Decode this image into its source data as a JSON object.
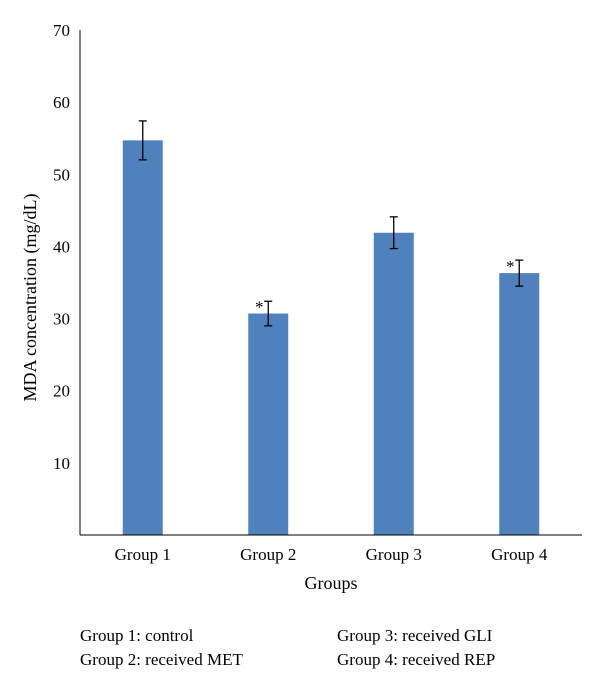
{
  "chart_data": {
    "type": "bar",
    "xlabel": "Groups",
    "ylabel": "MDA concentration (mg/dL)",
    "categories": [
      "Group 1",
      "Group 2",
      "Group 3",
      "Group 4"
    ],
    "values": [
      54.7,
      30.7,
      41.9,
      36.3
    ],
    "error": [
      2.7,
      1.7,
      2.2,
      1.8
    ],
    "annotations": [
      "",
      "*",
      "",
      "*"
    ],
    "ylim": [
      0,
      70
    ],
    "yticks": [
      "10",
      "20",
      "30",
      "40",
      "50",
      "60",
      "70"
    ],
    "grid": false,
    "bar_color": "#4F81BD"
  },
  "legend": {
    "left": [
      "Group 1: control",
      "Group 2: received MET"
    ],
    "right": [
      "Group 3: received GLI",
      "Group 4: received REP"
    ]
  }
}
